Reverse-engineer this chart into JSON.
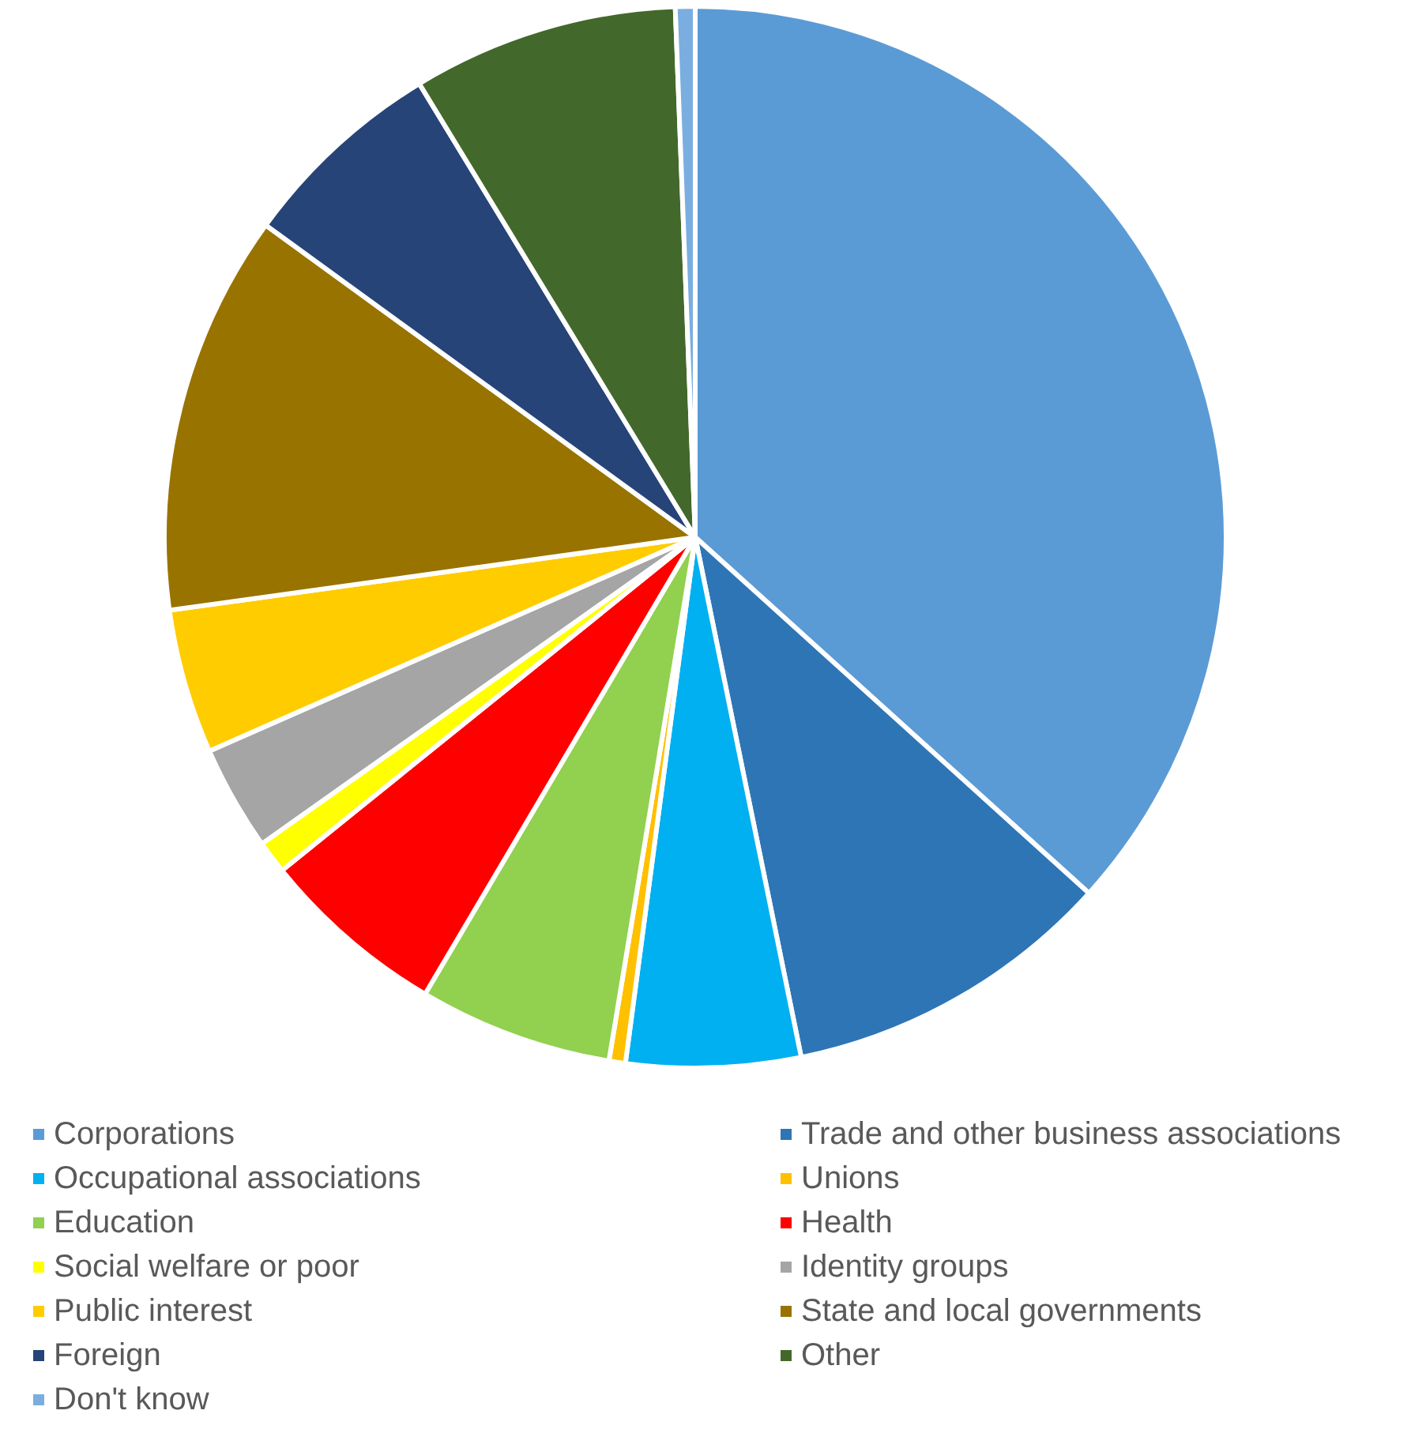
{
  "chart_data": {
    "type": "pie",
    "categories": [
      "Corporations",
      "Trade and other business associations",
      "Occupational associations",
      "Unions",
      "Education",
      "Health",
      "Social welfare or poor",
      "Identity groups",
      "Public interest",
      "State and local governments",
      "Foreign",
      "Other",
      "Don't know"
    ],
    "values": [
      36.7,
      10.1,
      5.3,
      0.5,
      5.9,
      5.7,
      1.0,
      3.2,
      4.4,
      12.2,
      6.3,
      8.1,
      0.6
    ],
    "colors": [
      "#5b9bd5",
      "#2e75b6",
      "#00b0f0",
      "#ffc000",
      "#92d050",
      "#ff0000",
      "#ffff00",
      "#a5a5a5",
      "#ffcc00",
      "#997300",
      "#264478",
      "#43682b",
      "#7aaee0"
    ],
    "legend": "bottom"
  }
}
